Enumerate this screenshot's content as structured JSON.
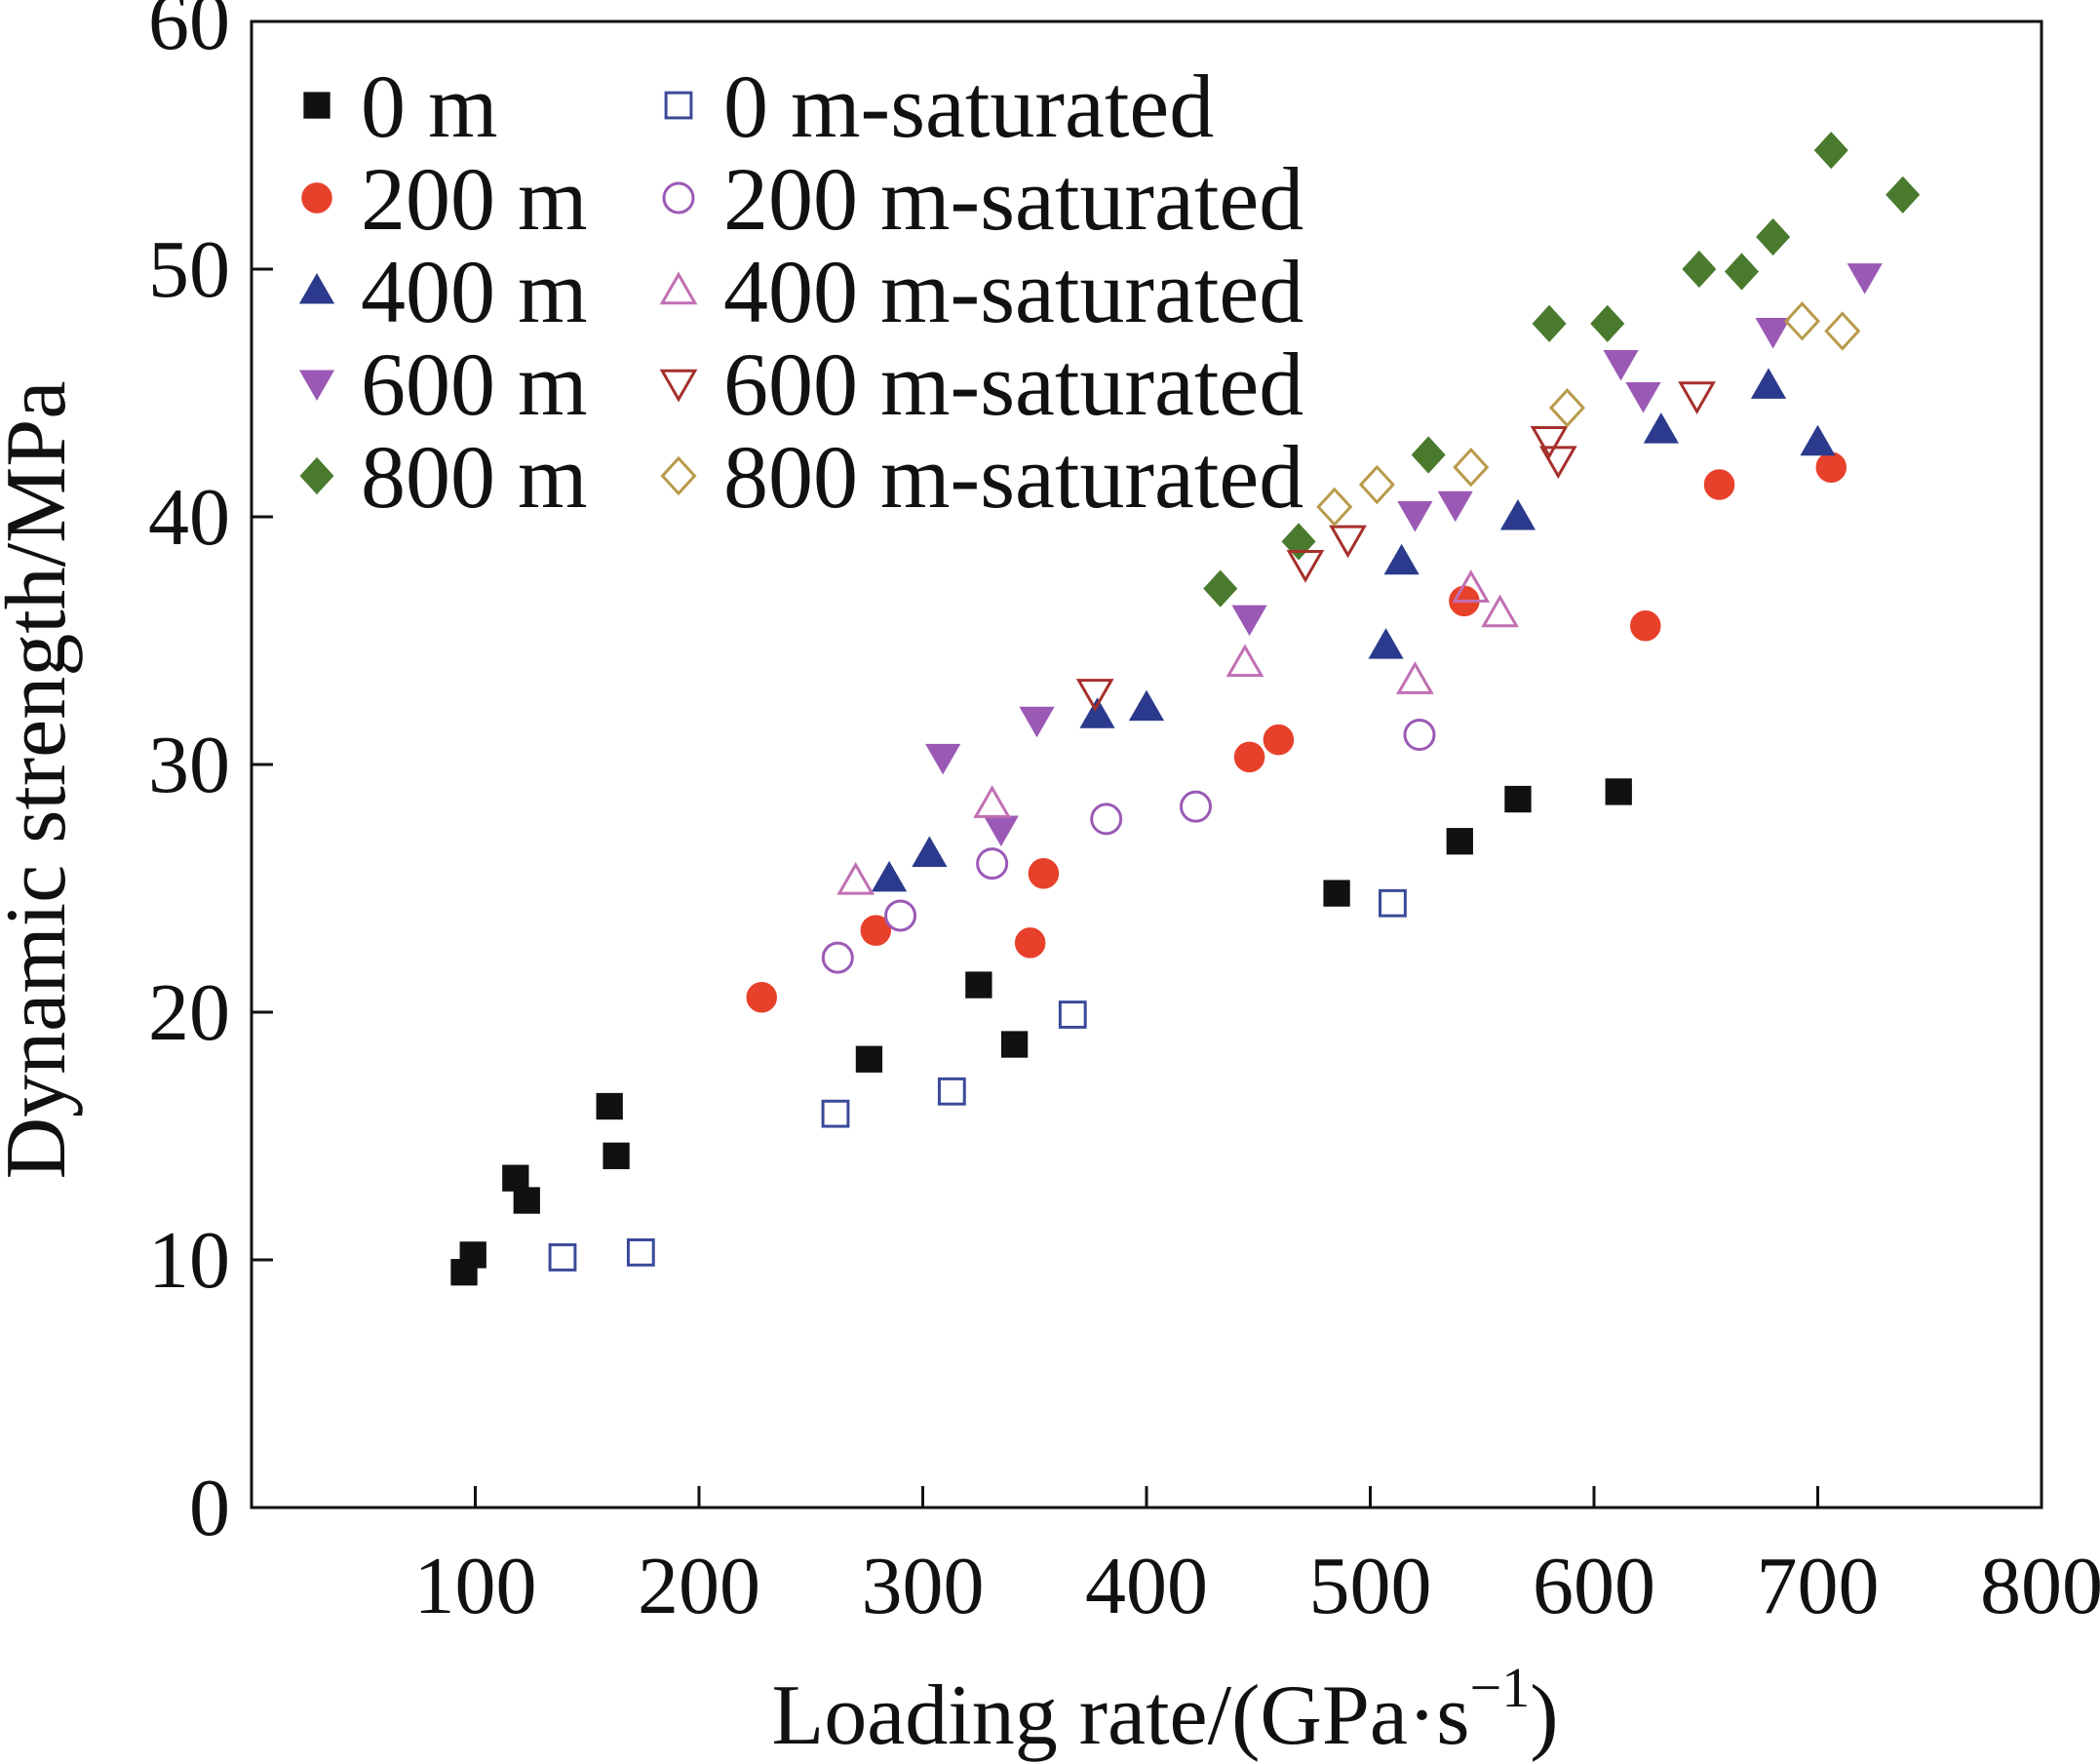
{
  "chart_data": {
    "type": "scatter",
    "title": "",
    "xlabel": "Loading rate/(GPa·s",
    "xlabel_sup": "−1",
    "xlabel_close": ")",
    "ylabel": "Dynamic strength/MPa",
    "xlim": [
      0,
      800
    ],
    "ylim": [
      0,
      60
    ],
    "x_ticks": [
      100,
      200,
      300,
      400,
      500,
      600,
      700,
      800
    ],
    "y_ticks": [
      0,
      10,
      20,
      30,
      40,
      50,
      60
    ],
    "grid": false,
    "legend_position": "top-left",
    "series": [
      {
        "name": "0 m",
        "marker": "square",
        "filled": true,
        "color": "#111111",
        "points": [
          [
            95,
            9.5
          ],
          [
            99,
            10.2
          ],
          [
            118,
            13.3
          ],
          [
            123,
            12.4
          ],
          [
            160,
            16.2
          ],
          [
            163,
            14.2
          ],
          [
            276,
            18.1
          ],
          [
            325,
            21.1
          ],
          [
            341,
            18.7
          ],
          [
            485,
            24.8
          ],
          [
            540,
            26.9
          ],
          [
            566,
            28.6
          ],
          [
            611,
            28.9
          ]
        ]
      },
      {
        "name": "200 m",
        "marker": "circle",
        "filled": true,
        "color": "#e8412b",
        "points": [
          [
            228,
            20.6
          ],
          [
            279,
            23.3
          ],
          [
            348,
            22.8
          ],
          [
            354,
            25.6
          ],
          [
            446,
            30.3
          ],
          [
            459,
            31.0
          ],
          [
            542,
            36.6
          ],
          [
            623,
            35.6
          ],
          [
            656,
            41.3
          ],
          [
            706,
            42.0
          ]
        ]
      },
      {
        "name": "400 m",
        "marker": "triangle-up",
        "filled": true,
        "color": "#2b3a8c",
        "points": [
          [
            285,
            25.4
          ],
          [
            303,
            26.4
          ],
          [
            378,
            32.0
          ],
          [
            400,
            32.3
          ],
          [
            507,
            34.8
          ],
          [
            514,
            38.2
          ],
          [
            566,
            40.0
          ],
          [
            630,
            43.5
          ],
          [
            678,
            45.3
          ],
          [
            700,
            43.0
          ]
        ]
      },
      {
        "name": "600 m",
        "marker": "triangle-down",
        "filled": true,
        "color": "#9b59b6",
        "points": [
          [
            309,
            30.3
          ],
          [
            335,
            27.4
          ],
          [
            351,
            31.8
          ],
          [
            446,
            35.9
          ],
          [
            520,
            40.1
          ],
          [
            538,
            40.5
          ],
          [
            612,
            46.2
          ],
          [
            622,
            44.9
          ],
          [
            680,
            47.5
          ],
          [
            721,
            49.7
          ]
        ]
      },
      {
        "name": "800 m",
        "marker": "diamond",
        "filled": true,
        "color": "#4a7a2e",
        "points": [
          [
            433,
            37.1
          ],
          [
            468,
            39.0
          ],
          [
            526,
            42.5
          ],
          [
            580,
            47.8
          ],
          [
            606,
            47.8
          ],
          [
            647,
            50.0
          ],
          [
            666,
            49.9
          ],
          [
            680,
            51.3
          ],
          [
            706,
            54.8
          ],
          [
            738,
            53.0
          ]
        ]
      },
      {
        "name": "0 m-saturated",
        "marker": "square",
        "filled": false,
        "color": "#3a4a9a",
        "points": [
          [
            139,
            10.1
          ],
          [
            174,
            10.3
          ],
          [
            261,
            15.9
          ],
          [
            313,
            16.8
          ],
          [
            367,
            19.9
          ],
          [
            510,
            24.4
          ]
        ]
      },
      {
        "name": "200 m-saturated",
        "marker": "circle",
        "filled": false,
        "color": "#9b59b6",
        "points": [
          [
            262,
            22.2
          ],
          [
            290,
            23.9
          ],
          [
            331,
            26.0
          ],
          [
            382,
            27.8
          ],
          [
            422,
            28.3
          ],
          [
            522,
            31.2
          ]
        ]
      },
      {
        "name": "400 m-saturated",
        "marker": "triangle-up",
        "filled": false,
        "color": "#c06fb3",
        "points": [
          [
            270,
            25.3
          ],
          [
            331,
            28.4
          ],
          [
            444,
            34.1
          ],
          [
            520,
            33.4
          ],
          [
            545,
            37.1
          ],
          [
            558,
            36.1
          ]
        ]
      },
      {
        "name": "600 m-saturated",
        "marker": "triangle-down",
        "filled": false,
        "color": "#a6302b",
        "points": [
          [
            377,
            32.9
          ],
          [
            471,
            38.1
          ],
          [
            490,
            39.1
          ],
          [
            580,
            43.1
          ],
          [
            584,
            42.3
          ],
          [
            646,
            44.9
          ]
        ]
      },
      {
        "name": "800 m-saturated",
        "marker": "diamond",
        "filled": false,
        "color": "#b89a4a",
        "points": [
          [
            484,
            40.4
          ],
          [
            503,
            41.3
          ],
          [
            545,
            42.0
          ],
          [
            588,
            44.4
          ],
          [
            693,
            47.9
          ],
          [
            711,
            47.5
          ]
        ]
      }
    ]
  }
}
